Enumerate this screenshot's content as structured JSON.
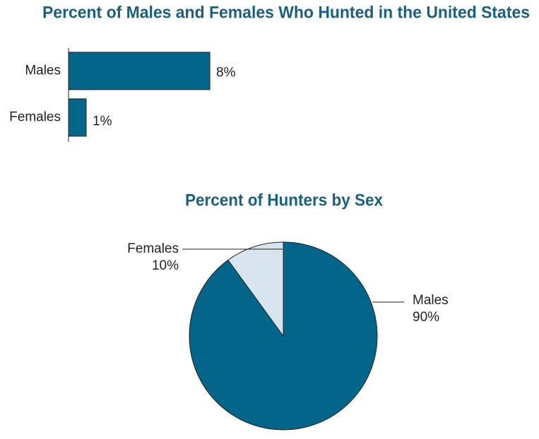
{
  "chart_data": [
    {
      "type": "bar",
      "title": "Percent of Males and Females Who Hunted in the United States",
      "categories": [
        "Males",
        "Females"
      ],
      "values": [
        8,
        1
      ],
      "value_labels": [
        "8%",
        "1%"
      ],
      "color": "#006589"
    },
    {
      "type": "pie",
      "title": "Percent of Hunters by Sex",
      "categories": [
        "Males",
        "Females"
      ],
      "values": [
        90,
        10
      ],
      "value_labels": [
        "90%",
        "10%"
      ],
      "colors": [
        "#006589",
        "#d6e5ee"
      ]
    }
  ]
}
